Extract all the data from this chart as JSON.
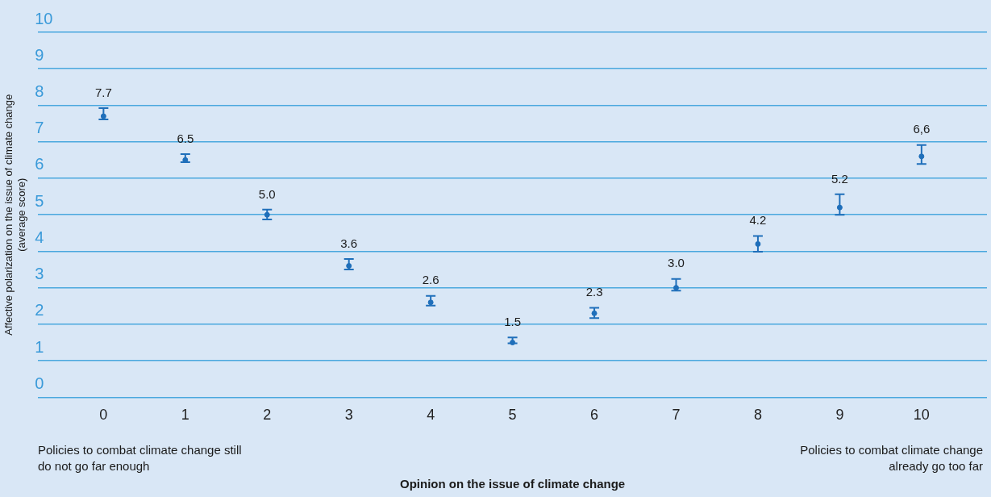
{
  "chart_data": {
    "type": "scatter",
    "xlabel": "Opinion on the issue of climate change",
    "ylabel": "Affective polarization on the issue of climate change (average score)",
    "categories": [
      "0",
      "1",
      "2",
      "3",
      "4",
      "5",
      "6",
      "7",
      "8",
      "9",
      "10"
    ],
    "values": [
      7.7,
      6.5,
      5.0,
      3.6,
      2.6,
      1.5,
      2.3,
      3.0,
      4.2,
      5.2,
      6.6
    ],
    "errors": [
      [
        7.61,
        7.92
      ],
      [
        6.44,
        6.66
      ],
      [
        4.87,
        5.14
      ],
      [
        3.5,
        3.79
      ],
      [
        2.51,
        2.78
      ],
      [
        1.48,
        1.64
      ],
      [
        2.17,
        2.45
      ],
      [
        2.92,
        3.24
      ],
      [
        3.99,
        4.42
      ],
      [
        5.0,
        5.56
      ],
      [
        6.39,
        6.91
      ]
    ],
    "value_labels": [
      "7.7",
      "6.5",
      "5.0",
      "3.6",
      "2.6",
      "1.5",
      "2.3",
      "3.0",
      "4.2",
      "5.2",
      "6,6"
    ],
    "color": "#1f6fba",
    "marker": "circle",
    "ylim": [
      0,
      10
    ],
    "yticks": [
      0,
      1,
      2,
      3,
      4,
      5,
      6,
      7,
      8,
      9,
      10
    ],
    "grid": "y",
    "legend": false,
    "annotations": [
      "Policies to combat climate change still do not go far enough",
      "Policies to combat climate change already go too far"
    ]
  }
}
